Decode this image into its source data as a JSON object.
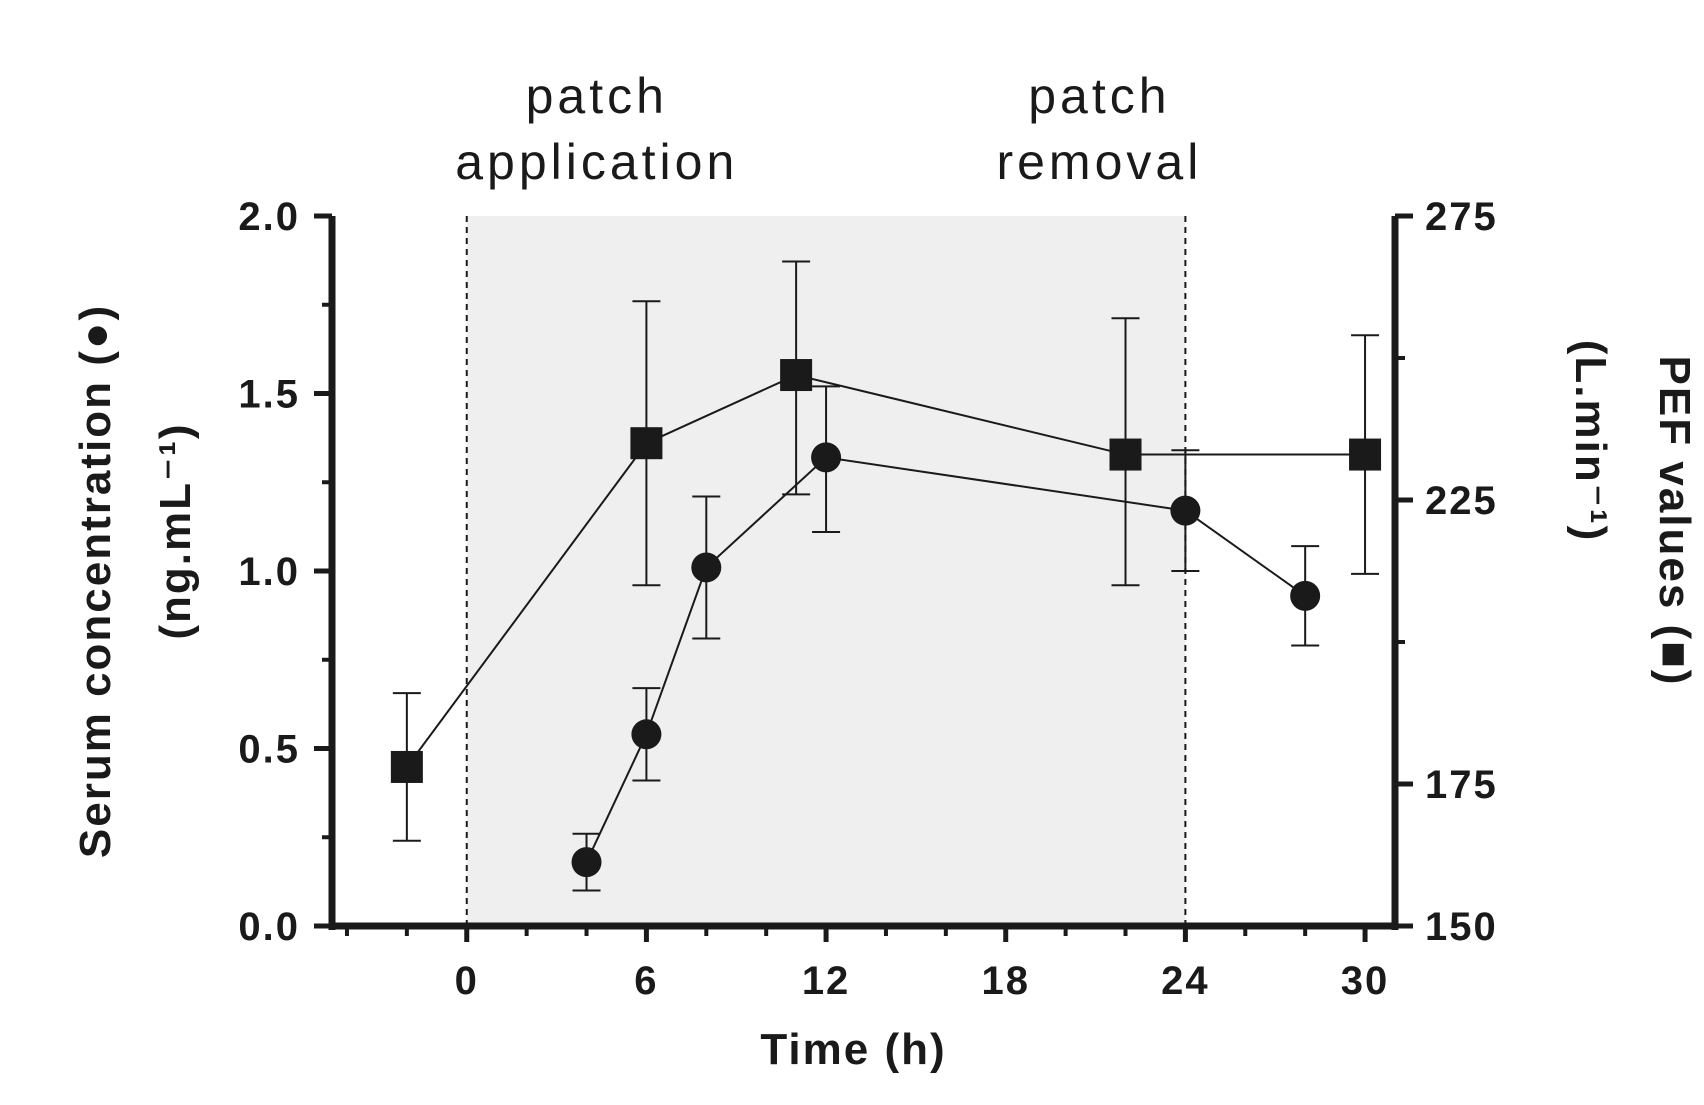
{
  "chart_data": {
    "type": "line",
    "xlabel": "Time (h)",
    "ylabel_left": "Serum concentration (●)",
    "ylabel_left_units": "(ng.mL⁻¹)",
    "ylabel_right": "PEF values (■)",
    "ylabel_right_units": "(L.min⁻¹)",
    "xlim": [
      -4.5,
      31
    ],
    "xticks": [
      0,
      6,
      12,
      18,
      24,
      30
    ],
    "xtick_labels": [
      "0",
      "6",
      "12",
      "18",
      "24",
      "30"
    ],
    "ylim_left": [
      0,
      2
    ],
    "yticks_left": [
      0,
      0.5,
      1,
      1.5,
      2
    ],
    "ytick_labels_left": [
      "0.0",
      "0.5",
      "1.0",
      "1.5",
      "2.0"
    ],
    "ylim_right": [
      150,
      275
    ],
    "yticks_right": [
      150,
      175,
      225,
      275
    ],
    "ytick_labels_right": [
      "150",
      "175",
      "225",
      "275"
    ],
    "grid": false,
    "shaded_interval": [
      0,
      24
    ],
    "shaded_color": "#efefef",
    "annotations": [
      {
        "lines": [
          "patch",
          "application"
        ],
        "x": 0
      },
      {
        "lines": [
          "patch",
          "removal"
        ],
        "x": 24
      }
    ],
    "series": [
      {
        "marker": "circle",
        "axis": "left",
        "color": "#1a1a1a",
        "x": [
          4,
          6,
          8,
          12,
          24,
          28
        ],
        "y": [
          0.18,
          0.54,
          1.01,
          1.32,
          1.17,
          0.93
        ],
        "err_low": [
          0.1,
          0.41,
          0.81,
          1.11,
          1.0,
          0.79
        ],
        "err_high": [
          0.26,
          0.67,
          1.21,
          1.52,
          1.34,
          1.07
        ]
      },
      {
        "marker": "square",
        "axis": "right",
        "color": "#1a1a1a",
        "x": [
          -2,
          6,
          11,
          22,
          30
        ],
        "y": [
          178,
          235,
          247,
          233,
          233
        ],
        "err_low": [
          165,
          210,
          226,
          210,
          212
        ],
        "err_high": [
          191,
          260,
          267,
          257,
          254
        ]
      }
    ]
  }
}
